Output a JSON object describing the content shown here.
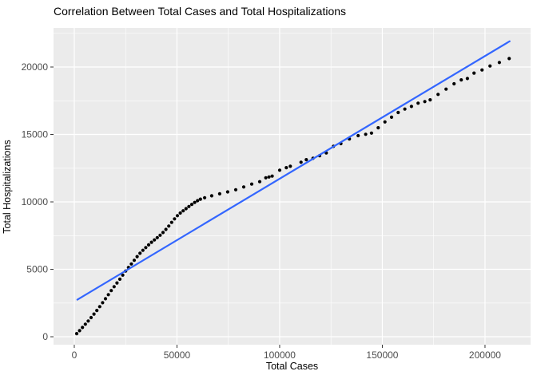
{
  "chart_data": {
    "type": "scatter",
    "title": "Correlation Between Total Cases and Total Hospitalizations",
    "xlabel": "Total Cases",
    "ylabel": "Total Hospitalizations",
    "x_ticks": [
      0,
      50000,
      100000,
      150000,
      200000
    ],
    "x_tick_labels": [
      "0",
      "50000",
      "100000",
      "150000",
      "200000"
    ],
    "y_ticks": [
      0,
      5000,
      10000,
      15000,
      20000
    ],
    "y_tick_labels": [
      "0",
      "5000",
      "10000",
      "15000",
      "20000"
    ],
    "x_minor_ticks": [
      25000,
      75000,
      125000,
      175000
    ],
    "y_minor_ticks": [
      2500,
      7500,
      12500,
      17500,
      22500
    ],
    "x_domain": [
      -10100,
      222200
    ],
    "y_domain": [
      -590,
      22900
    ],
    "grid": true,
    "legend": "none",
    "panel_bg": "#EBEBEB",
    "grid_color": "#FFFFFF",
    "point_color": "#000000",
    "trend_color": "#3366FF",
    "axis_text_color": "#4D4D4D",
    "tick_mark_color": "#333333",
    "trend_line": {
      "x1": 1500,
      "y1": 2750,
      "x2": 212000,
      "y2": 21910
    },
    "points": [
      [
        1200,
        230
      ],
      [
        2600,
        450
      ],
      [
        4000,
        690
      ],
      [
        5400,
        930
      ],
      [
        6800,
        1170
      ],
      [
        8200,
        1420
      ],
      [
        9600,
        1680
      ],
      [
        11000,
        1950
      ],
      [
        12400,
        2230
      ],
      [
        13800,
        2520
      ],
      [
        15200,
        2820
      ],
      [
        16600,
        3120
      ],
      [
        18000,
        3420
      ],
      [
        19400,
        3710
      ],
      [
        20800,
        3990
      ],
      [
        22200,
        4270
      ],
      [
        23600,
        4570
      ],
      [
        25000,
        4870
      ],
      [
        26400,
        5140
      ],
      [
        27800,
        5400
      ],
      [
        29200,
        5670
      ],
      [
        30600,
        5940
      ],
      [
        32000,
        6190
      ],
      [
        33400,
        6410
      ],
      [
        34800,
        6610
      ],
      [
        36200,
        6810
      ],
      [
        37600,
        7010
      ],
      [
        39000,
        7180
      ],
      [
        40400,
        7350
      ],
      [
        41800,
        7530
      ],
      [
        43200,
        7730
      ],
      [
        44600,
        7960
      ],
      [
        46000,
        8210
      ],
      [
        47400,
        8480
      ],
      [
        48800,
        8740
      ],
      [
        50200,
        8980
      ],
      [
        51600,
        9170
      ],
      [
        53000,
        9340
      ],
      [
        54400,
        9500
      ],
      [
        55800,
        9660
      ],
      [
        57200,
        9810
      ],
      [
        58600,
        9960
      ],
      [
        60000,
        10090
      ],
      [
        61400,
        10200
      ],
      [
        63500,
        10310
      ],
      [
        66900,
        10450
      ],
      [
        70800,
        10600
      ],
      [
        74700,
        10740
      ],
      [
        78600,
        10900
      ],
      [
        82500,
        11110
      ],
      [
        86400,
        11320
      ],
      [
        90300,
        11500
      ],
      [
        93260,
        11790
      ],
      [
        94820,
        11850
      ],
      [
        96380,
        11910
      ],
      [
        100000,
        12350
      ],
      [
        103230,
        12540
      ],
      [
        105180,
        12640
      ],
      [
        110390,
        12940
      ],
      [
        112980,
        13130
      ],
      [
        116250,
        13230
      ],
      [
        119460,
        13430
      ],
      [
        122700,
        13630
      ],
      [
        126200,
        14120
      ],
      [
        129830,
        14320
      ],
      [
        133960,
        14670
      ],
      [
        138240,
        14910
      ],
      [
        141900,
        15010
      ],
      [
        144730,
        15100
      ],
      [
        147980,
        15500
      ],
      [
        151250,
        15930
      ],
      [
        154480,
        16280
      ],
      [
        157720,
        16630
      ],
      [
        160960,
        16880
      ],
      [
        164190,
        17080
      ],
      [
        167420,
        17320
      ],
      [
        170680,
        17440
      ],
      [
        173270,
        17570
      ],
      [
        177160,
        17970
      ],
      [
        181050,
        18360
      ],
      [
        184940,
        18760
      ],
      [
        188440,
        19050
      ],
      [
        191430,
        19150
      ],
      [
        194660,
        19550
      ],
      [
        198550,
        19780
      ],
      [
        202440,
        20080
      ],
      [
        206990,
        20340
      ],
      [
        211780,
        20630
      ]
    ]
  }
}
